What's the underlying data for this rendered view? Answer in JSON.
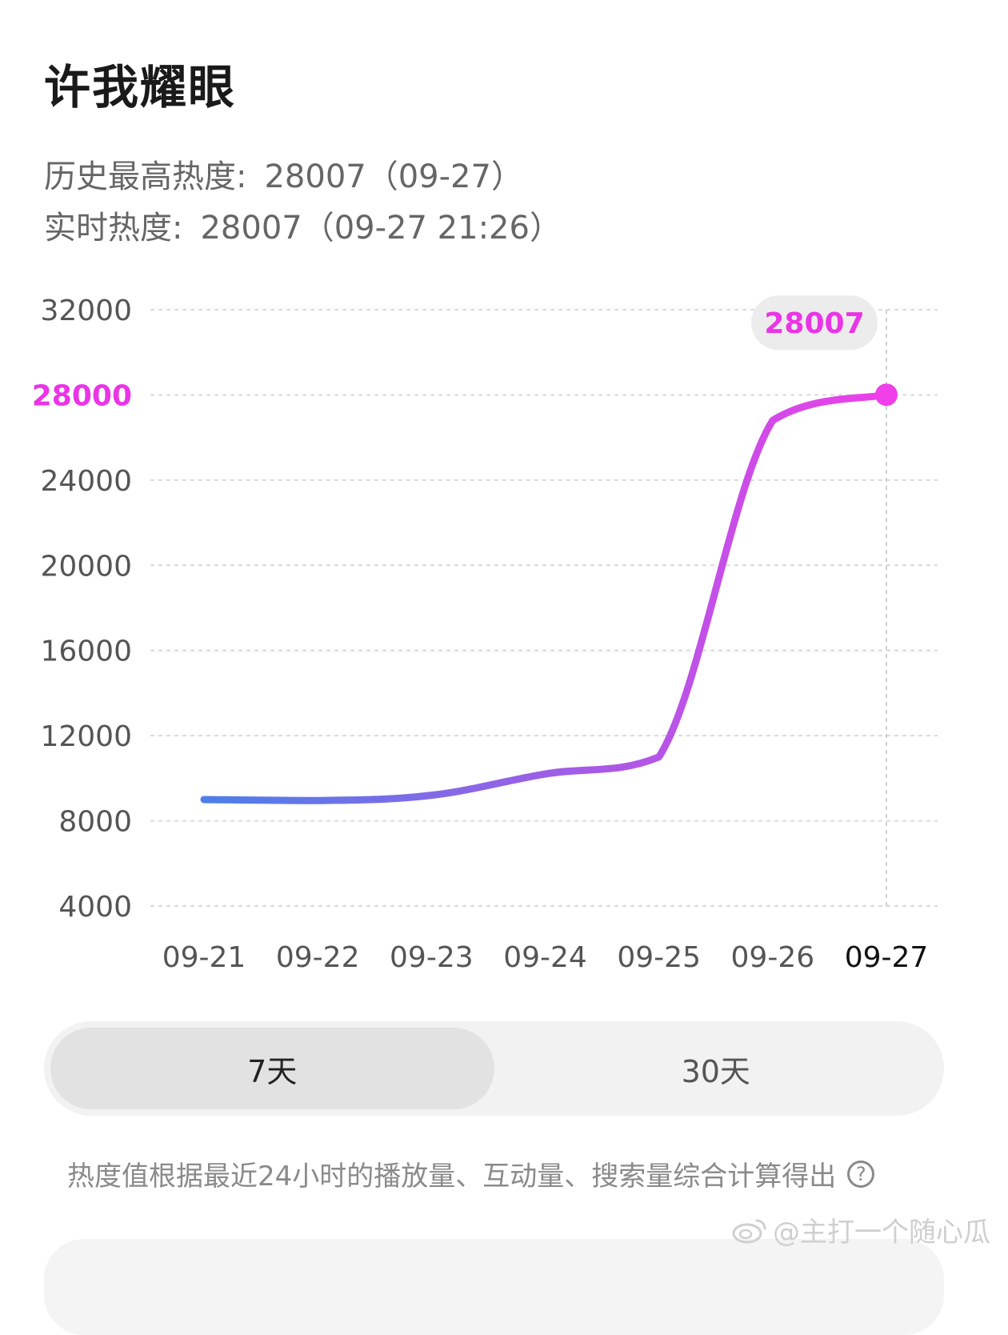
{
  "title": "许我耀眼",
  "stats": {
    "peak_label": "历史最高热度:",
    "peak_value": "28007（09-27）",
    "live_label": "实时热度:",
    "live_value": "28007（09-27 21:26）"
  },
  "chart_data": {
    "type": "line",
    "categories": [
      "09-21",
      "09-22",
      "09-23",
      "09-24",
      "09-25",
      "09-26",
      "09-27"
    ],
    "x": [
      "09-21",
      "09-22",
      "09-23",
      "09-24",
      "09-25",
      "09-26",
      "09-27"
    ],
    "y_ticks": [
      32000,
      28000,
      24000,
      20000,
      16000,
      12000,
      8000,
      4000
    ],
    "highlight_tick": 28000,
    "ylim": [
      4000,
      32000
    ],
    "grid": true,
    "series": [
      {
        "values": [
          9000,
          8950,
          9200,
          10200,
          11000,
          26800,
          28007
        ]
      }
    ],
    "tooltip": {
      "x": "09-27",
      "value": "28007"
    },
    "colors": {
      "line_start": "#4d7fe8",
      "line_mid": "#a35ce6",
      "line_end": "#ee3fe9",
      "tooltip_bg": "#ececec"
    }
  },
  "toggle": {
    "options": [
      "7天",
      "30天"
    ],
    "active": "7天"
  },
  "footnote": "热度值根据最近24小时的播放量、互动量、搜索量综合计算得出",
  "watermark": "@主打一个随心瓜"
}
